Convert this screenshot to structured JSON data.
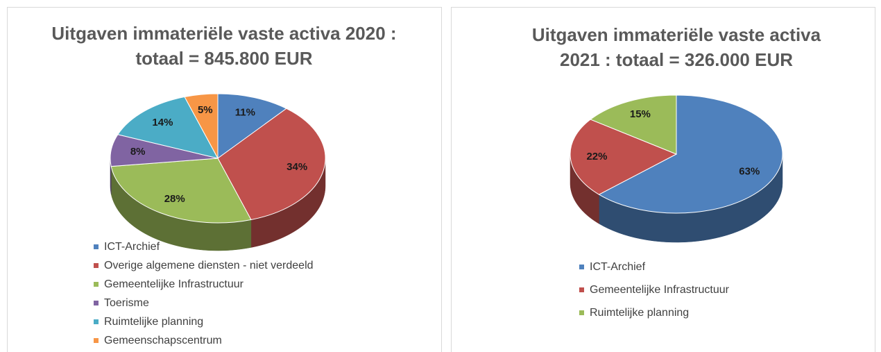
{
  "chart_data": [
    {
      "type": "pie3d",
      "title": "Uitgaven immateriële vaste activa 2020 : totaal = 845.800 EUR",
      "categories": [
        "ICT-Archief",
        "Overige algemene diensten - niet verdeeld",
        "Gemeentelijke Infrastructuur",
        "Toerisme",
        "Ruimtelijke planning",
        "Gemeenschapscentrum"
      ],
      "values": [
        11,
        34,
        28,
        8,
        14,
        5
      ],
      "value_labels": [
        "11%",
        "34%",
        "28%",
        "8%",
        "14%",
        "5%"
      ],
      "colors": [
        "#4f81bd",
        "#c0504d",
        "#9bbb59",
        "#8064a2",
        "#4bacc6",
        "#f79646"
      ]
    },
    {
      "type": "pie3d",
      "title": "Uitgaven immateriële vaste activa 2021 : totaal = 326.000 EUR",
      "categories": [
        "ICT-Archief",
        "Gemeentelijke Infrastructuur",
        "Ruimtelijke planning"
      ],
      "values": [
        63,
        22,
        15
      ],
      "value_labels": [
        "63%",
        "22%",
        "15%"
      ],
      "colors": [
        "#4f81bd",
        "#c0504d",
        "#9bbb59"
      ]
    }
  ]
}
